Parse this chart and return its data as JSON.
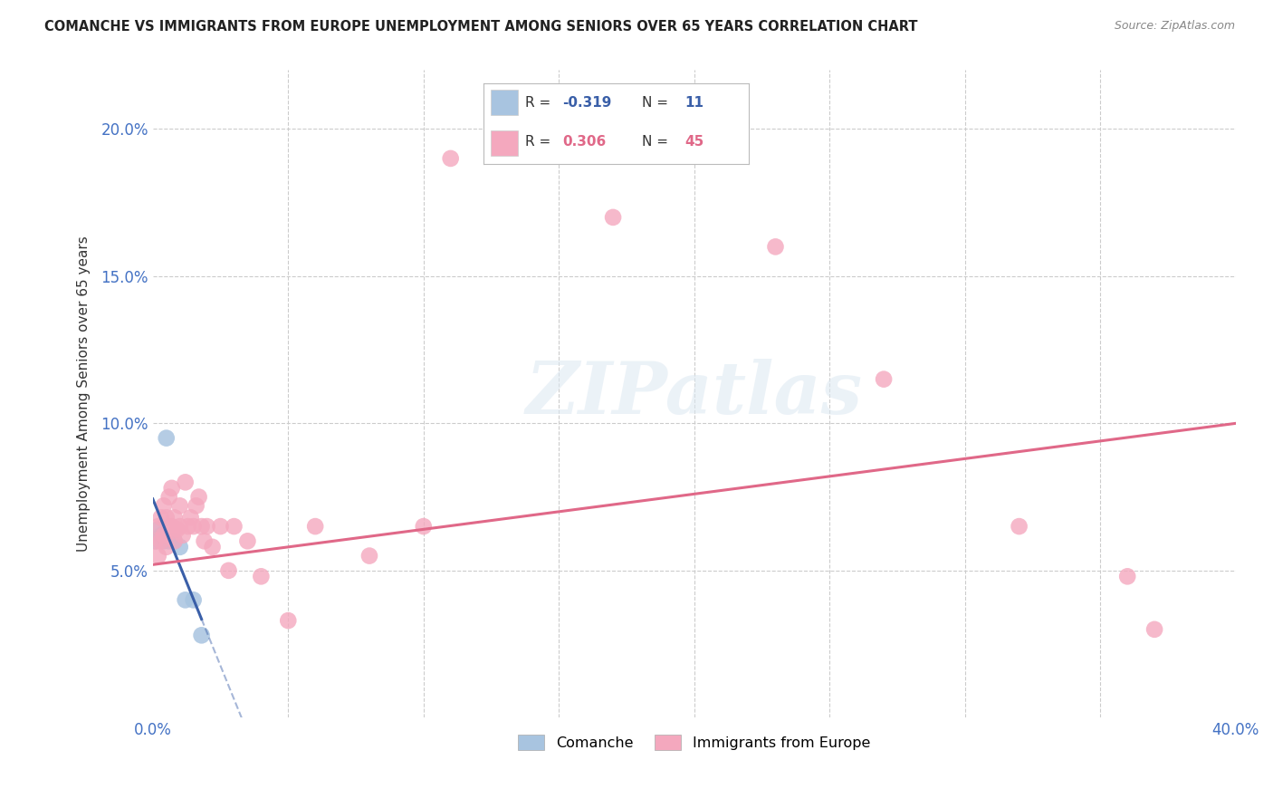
{
  "title": "COMANCHE VS IMMIGRANTS FROM EUROPE UNEMPLOYMENT AMONG SENIORS OVER 65 YEARS CORRELATION CHART",
  "source": "Source: ZipAtlas.com",
  "ylabel": "Unemployment Among Seniors over 65 years",
  "xlim": [
    0.0,
    0.4
  ],
  "ylim": [
    0.0,
    0.22
  ],
  "background_color": "#ffffff",
  "comanche_color": "#a8c4e0",
  "immigrants_color": "#f4a8be",
  "comanche_line_color": "#3a5fa8",
  "immigrants_line_color": "#e06888",
  "comanche_r": -0.319,
  "comanche_n": 11,
  "immigrants_r": 0.306,
  "immigrants_n": 45,
  "comanche_x": [
    0.001,
    0.002,
    0.003,
    0.004,
    0.005,
    0.006,
    0.008,
    0.01,
    0.012,
    0.015,
    0.018
  ],
  "comanche_y": [
    0.06,
    0.064,
    0.062,
    0.06,
    0.095,
    0.06,
    0.06,
    0.058,
    0.04,
    0.04,
    0.028
  ],
  "immigrants_x": [
    0.001,
    0.002,
    0.002,
    0.003,
    0.003,
    0.004,
    0.004,
    0.005,
    0.005,
    0.006,
    0.006,
    0.007,
    0.007,
    0.008,
    0.008,
    0.009,
    0.01,
    0.01,
    0.011,
    0.012,
    0.013,
    0.014,
    0.015,
    0.016,
    0.017,
    0.018,
    0.019,
    0.02,
    0.022,
    0.025,
    0.028,
    0.03,
    0.035,
    0.04,
    0.05,
    0.06,
    0.08,
    0.1,
    0.11,
    0.17,
    0.23,
    0.27,
    0.32,
    0.36,
    0.37
  ],
  "immigrants_y": [
    0.06,
    0.055,
    0.065,
    0.06,
    0.068,
    0.062,
    0.072,
    0.058,
    0.068,
    0.063,
    0.075,
    0.065,
    0.078,
    0.06,
    0.068,
    0.064,
    0.065,
    0.072,
    0.062,
    0.08,
    0.065,
    0.068,
    0.065,
    0.072,
    0.075,
    0.065,
    0.06,
    0.065,
    0.058,
    0.065,
    0.05,
    0.065,
    0.06,
    0.048,
    0.033,
    0.065,
    0.055,
    0.065,
    0.19,
    0.17,
    0.16,
    0.115,
    0.065,
    0.048,
    0.03
  ]
}
